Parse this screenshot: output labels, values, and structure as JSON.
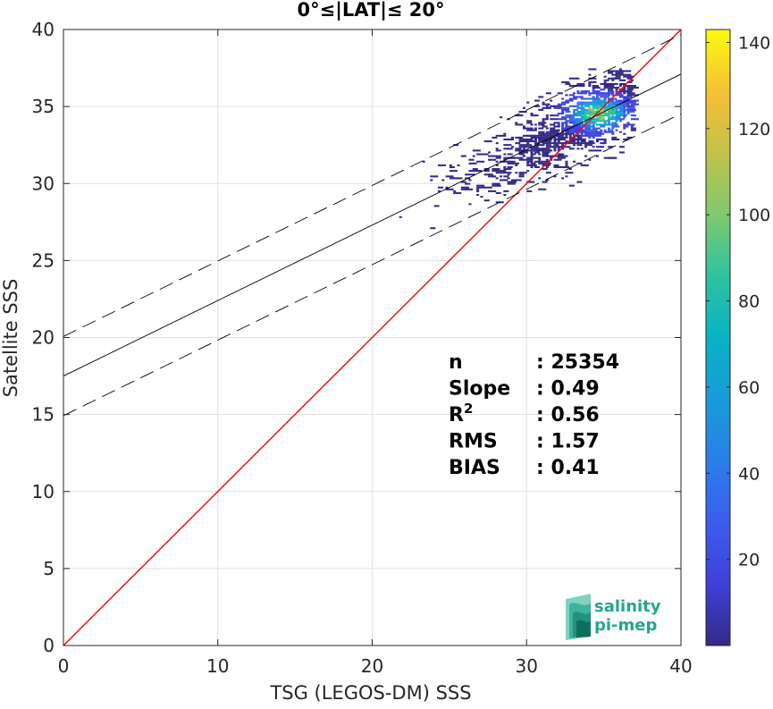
{
  "chart_data": {
    "type": "heatmap",
    "title": "0°≤|LAT|≤ 20°",
    "xlabel": "TSG (LEGOS-DM) SSS",
    "ylabel": "Satellite SSS",
    "xlim": [
      0,
      40
    ],
    "ylim": [
      0,
      40
    ],
    "xticks": [
      "0",
      "10",
      "20",
      "30",
      "40"
    ],
    "yticks": [
      "0",
      "5",
      "10",
      "15",
      "20",
      "25",
      "30",
      "35",
      "40"
    ],
    "grid": true,
    "colorbar": {
      "range": [
        0,
        143
      ],
      "ticks": [
        "20",
        "40",
        "60",
        "80",
        "100",
        "120",
        "140"
      ],
      "colormap": "parula"
    },
    "density": {
      "x_range": [
        20.5,
        37
      ],
      "y_range": [
        26.8,
        37.4
      ],
      "center_x": 34.5,
      "center_y": 34.5,
      "peak_count": 143
    },
    "lines": [
      {
        "role": "identity",
        "slope": 1.0,
        "intercept": 0,
        "color": "#ff0000",
        "style": "solid"
      },
      {
        "role": "fit",
        "slope": 0.49,
        "intercept": 17.5,
        "color": "#000000",
        "style": "solid"
      },
      {
        "role": "fit-upper",
        "slope": 0.49,
        "intercept": 20.07,
        "color": "#000000",
        "style": "dashed"
      },
      {
        "role": "fit-lower",
        "slope": 0.49,
        "intercept": 14.93,
        "color": "#000000",
        "style": "dashed"
      }
    ],
    "stats": [
      {
        "key": "n",
        "value": ": 25354"
      },
      {
        "key": "Slope",
        "value": ": 0.49"
      },
      {
        "key": "R",
        "sup": "2",
        "value": ": 0.56"
      },
      {
        "key": "RMS",
        "value": ": 1.57"
      },
      {
        "key": "BIAS",
        "value": ": 0.41"
      }
    ]
  },
  "logo": {
    "line1": "salinity",
    "line2": "pi-mep"
  }
}
